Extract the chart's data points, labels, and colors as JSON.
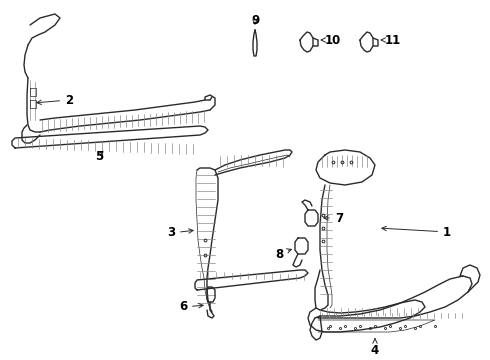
{
  "background_color": "#ffffff",
  "line_color": "#2a2a2a",
  "label_color": "#000000",
  "lw_main": 1.0,
  "lw_thin": 0.5,
  "figsize": [
    4.9,
    3.6
  ],
  "dpi": 100
}
